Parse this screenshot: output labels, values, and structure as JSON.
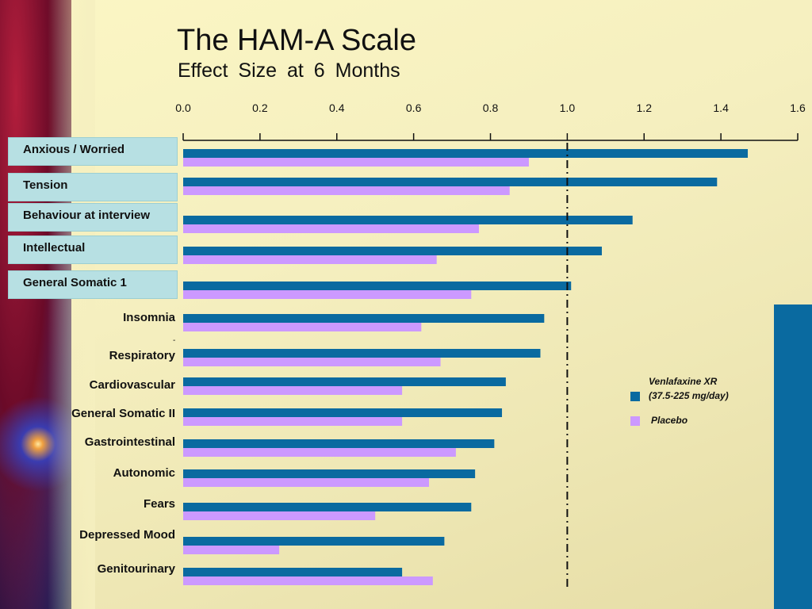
{
  "chart_data": {
    "type": "bar",
    "orientation": "horizontal",
    "title": "The HAM-A Scale",
    "subtitle": "Effect  Size  at  6  Months",
    "xlim": [
      0.0,
      1.6
    ],
    "x_ticks": [
      "0.0",
      "0.2",
      "0.4",
      "0.6",
      "0.8",
      "1.0",
      "1.2",
      "1.4",
      "1.6"
    ],
    "reference_line": 1.0,
    "categories": [
      "Anxious / Worried",
      "Tension",
      "Behaviour at interview",
      "Intellectual",
      "General Somatic 1",
      "Insomnia",
      "Respiratory",
      "Cardiovascular",
      "General Somatic II",
      "Gastrointestinal",
      "Autonomic",
      "Fears",
      "Depressed Mood",
      "Genitourinary"
    ],
    "highlighted_categories": 5,
    "series": [
      {
        "name": "Venlafaxine XR",
        "name_detail": "(37.5-225 mg/day)",
        "color": "#0a6aa0",
        "values": [
          1.47,
          1.39,
          1.17,
          1.09,
          1.01,
          0.94,
          0.93,
          0.84,
          0.83,
          0.81,
          0.76,
          0.75,
          0.68,
          0.57
        ]
      },
      {
        "name": "Placebo",
        "color": "#cc99ff",
        "values": [
          0.9,
          0.85,
          0.77,
          0.66,
          0.75,
          0.62,
          0.67,
          0.57,
          0.57,
          0.71,
          0.64,
          0.5,
          0.25,
          0.65
        ]
      }
    ]
  },
  "decor": {
    "stray_mark": "-"
  }
}
